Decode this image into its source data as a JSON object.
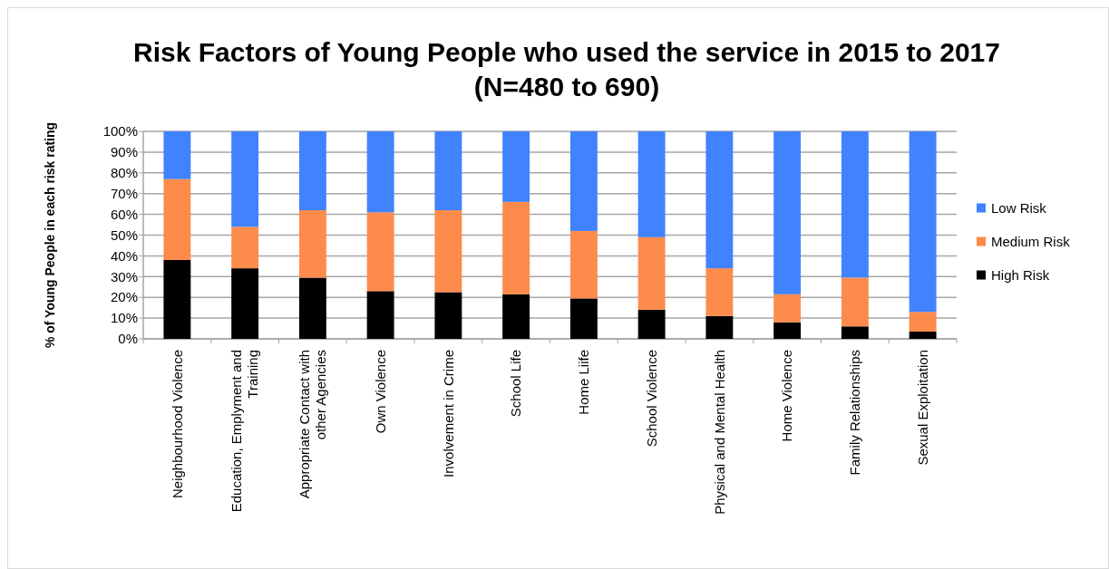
{
  "chart_data": {
    "type": "bar",
    "stacked": true,
    "title": "Risk Factors of Young People who used the service in 2015 to 2017 (N=480 to 690)",
    "ylabel": "% of Young People in each risk rating",
    "categories": [
      "Neighbourhood Violence",
      "Education, Emplyment and Training",
      "Appropriate Contact with other Agencies",
      "Own Violence",
      "Involvement in Crime",
      "School Life",
      "Home Liife",
      "School Violence",
      "Physical and Mental Health",
      "Home Violence",
      "Family Relationships",
      "Sexual Exploitation"
    ],
    "series": [
      {
        "name": "High Risk",
        "color": "#000000",
        "values": [
          38,
          34,
          29.5,
          23,
          22.5,
          21.5,
          19.5,
          14,
          11,
          8,
          6,
          3.5
        ]
      },
      {
        "name": "Medium Risk",
        "color": "#fd8b4b",
        "values": [
          39,
          20,
          32.5,
          38,
          39.5,
          44.5,
          32.5,
          35,
          23,
          13.5,
          23.5,
          9.5
        ]
      },
      {
        "name": "Low Risk",
        "color": "#4182ff",
        "values": [
          23,
          46,
          38,
          39,
          38,
          34,
          48,
          51,
          66,
          78.5,
          70.5,
          87
        ]
      }
    ],
    "ylim": [
      0,
      100
    ],
    "yticks": [
      {
        "value": 0,
        "label": "0%"
      },
      {
        "value": 10,
        "label": "10%"
      },
      {
        "value": 20,
        "label": "20%"
      },
      {
        "value": 30,
        "label": "30%"
      },
      {
        "value": 40,
        "label": "40%"
      },
      {
        "value": 50,
        "label": "50%"
      },
      {
        "value": 60,
        "label": "60%"
      },
      {
        "value": 70,
        "label": "70%"
      },
      {
        "value": 80,
        "label": "80%"
      },
      {
        "value": 90,
        "label": "90%"
      },
      {
        "value": 100,
        "label": "100%"
      }
    ],
    "grid": "y",
    "legend": "right"
  }
}
